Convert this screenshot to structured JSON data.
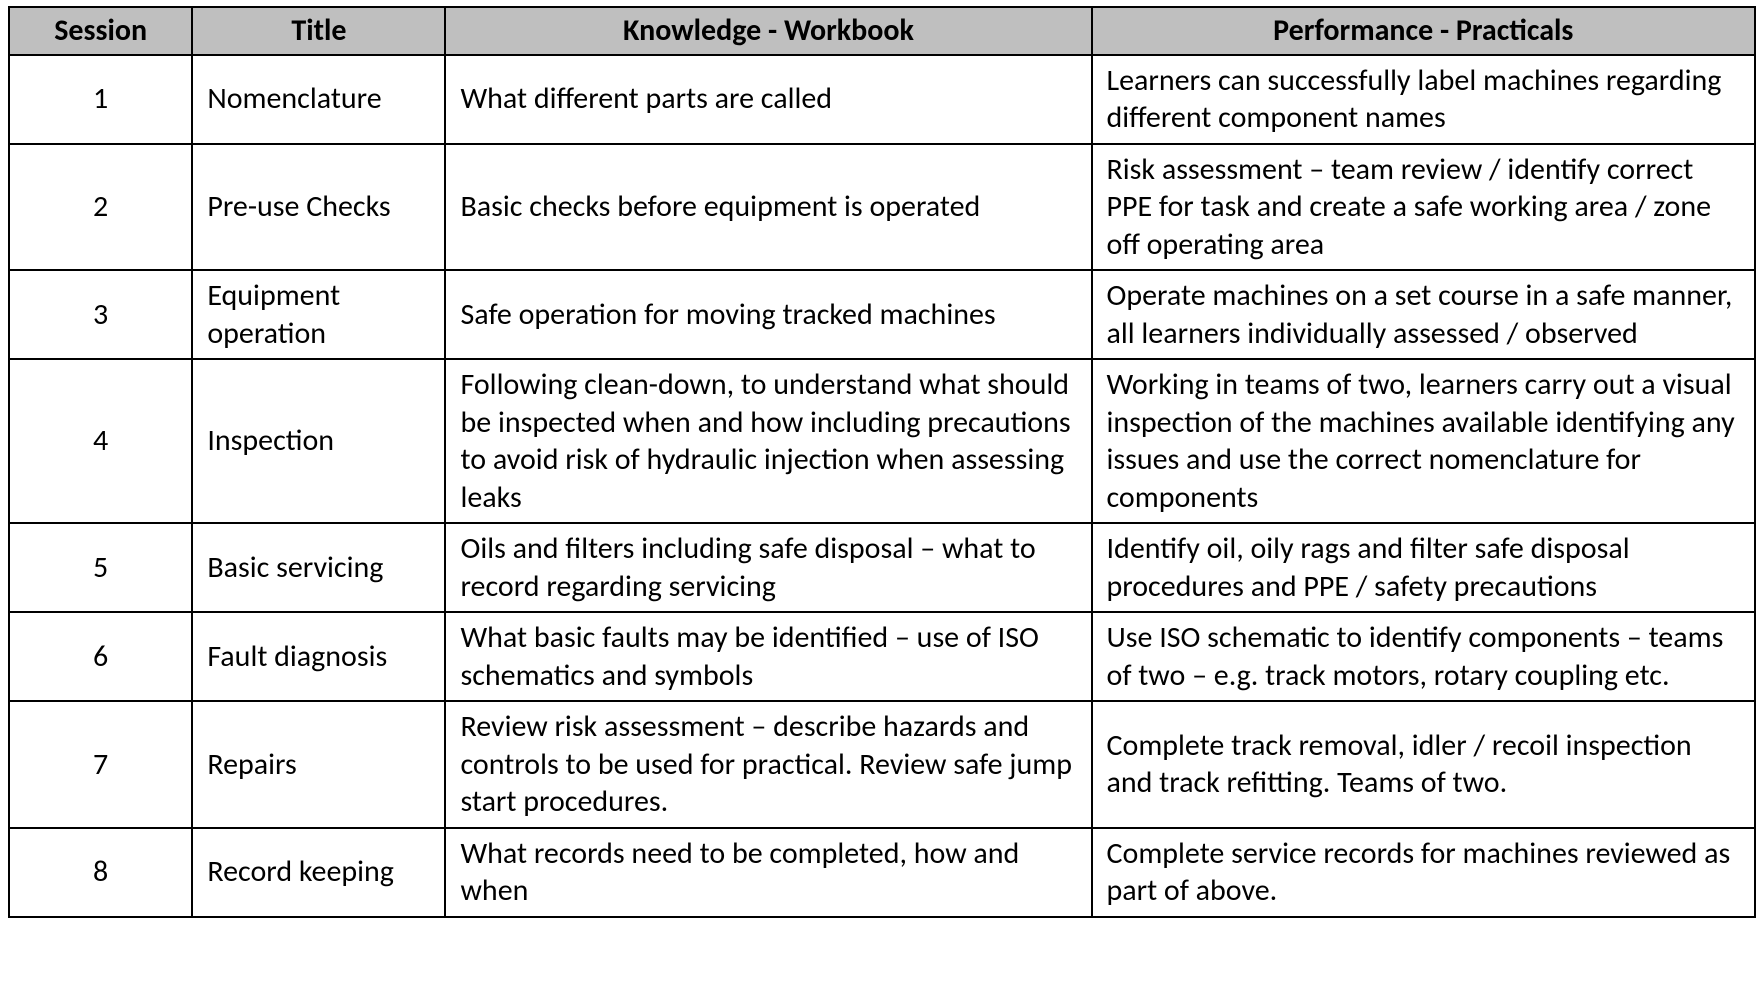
{
  "table": {
    "header_bg": "#bfbfbf",
    "border_color": "#000000",
    "font_family": "Calibri",
    "header_fontsize_pt": 22,
    "body_fontsize_pt": 22,
    "columns": [
      {
        "label": "Session",
        "width_pct": 10.5,
        "align": "center"
      },
      {
        "label": "Title",
        "width_pct": 14.5,
        "align": "left"
      },
      {
        "label": "Knowledge - Workbook",
        "width_pct": 37.0,
        "align": "left"
      },
      {
        "label": "Performance - Practicals",
        "width_pct": 38.0,
        "align": "left"
      }
    ],
    "rows": [
      {
        "session": "1",
        "title": "Nomenclature",
        "knowledge": "What different parts are called",
        "performance": "Learners can successfully label machines regarding different component names"
      },
      {
        "session": "2",
        "title": "Pre-use Checks",
        "knowledge": "Basic checks before equipment is operated",
        "performance": "Risk assessment – team review / identify correct PPE for task and create a safe working area / zone off operating area"
      },
      {
        "session": "3",
        "title": "Equipment operation",
        "knowledge": "Safe operation for moving tracked machines",
        "performance": "Operate machines on a set course in a safe manner, all learners individually assessed / observed"
      },
      {
        "session": "4",
        "title": "Inspection",
        "knowledge": "Following clean-down, to understand what should be inspected when and how including precautions to avoid risk of hydraulic injection when assessing leaks",
        "performance": "Working in teams of two, learners carry out a visual inspection of the machines available identifying any issues and use the correct nomenclature for components"
      },
      {
        "session": "5",
        "title": "Basic servicing",
        "knowledge": "Oils and filters including safe disposal – what to record regarding servicing",
        "performance": "Identify oil, oily rags and filter safe disposal procedures and PPE / safety precautions"
      },
      {
        "session": "6",
        "title": "Fault diagnosis",
        "knowledge": "What basic faults may be identified – use of ISO schematics and symbols",
        "performance": "Use ISO schematic to identify components – teams of two – e.g. track motors, rotary coupling etc."
      },
      {
        "session": "7",
        "title": "Repairs",
        "knowledge": "Review risk assessment – describe hazards and controls to be used for practical. Review safe jump start procedures.",
        "performance": "Complete track removal, idler / recoil inspection and track refitting.  Teams of two."
      },
      {
        "session": "8",
        "title": "Record keeping",
        "knowledge": "What records need to be completed, how and when",
        "performance": "Complete service records for machines reviewed as part of above."
      }
    ]
  }
}
